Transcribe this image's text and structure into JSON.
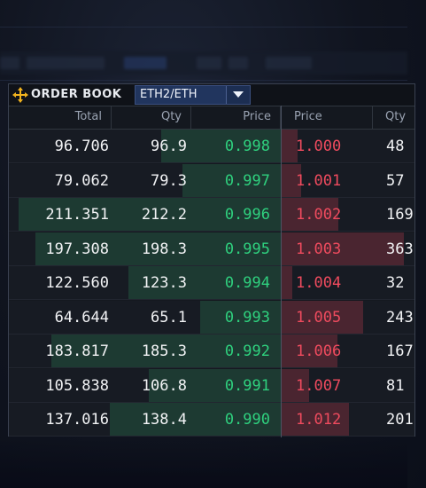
{
  "widget": {
    "title": "ORDER BOOK",
    "pair": "ETH2/ETH"
  },
  "columns": {
    "bid_total": "Total",
    "bid_qty": "Qty",
    "bid_price": "Price",
    "ask_price": "Price",
    "ask_qty": "Qty"
  },
  "colors": {
    "bid": "#2fd07e",
    "ask": "#ef4b5e",
    "pair_selector": "#21355e"
  },
  "rows": [
    {
      "total": "96.706",
      "bid_qty": "96.9",
      "bid_price": "0.998",
      "ask_price": "1.000",
      "ask_qty": "48"
    },
    {
      "total": "79.062",
      "bid_qty": "79.3",
      "bid_price": "0.997",
      "ask_price": "1.001",
      "ask_qty": "57"
    },
    {
      "total": "211.351",
      "bid_qty": "212.2",
      "bid_price": "0.996",
      "ask_price": "1.002",
      "ask_qty": "169"
    },
    {
      "total": "197.308",
      "bid_qty": "198.3",
      "bid_price": "0.995",
      "ask_price": "1.003",
      "ask_qty": "363"
    },
    {
      "total": "122.560",
      "bid_qty": "123.3",
      "bid_price": "0.994",
      "ask_price": "1.004",
      "ask_qty": "32"
    },
    {
      "total": "64.644",
      "bid_qty": "65.1",
      "bid_price": "0.993",
      "ask_price": "1.005",
      "ask_qty": "243"
    },
    {
      "total": "183.817",
      "bid_qty": "185.3",
      "bid_price": "0.992",
      "ask_price": "1.006",
      "ask_qty": "167"
    },
    {
      "total": "105.838",
      "bid_qty": "106.8",
      "bid_price": "0.991",
      "ask_price": "1.007",
      "ask_qty": "81"
    },
    {
      "total": "137.016",
      "bid_qty": "138.4",
      "bid_price": "0.990",
      "ask_price": "1.012",
      "ask_qty": "201"
    }
  ]
}
